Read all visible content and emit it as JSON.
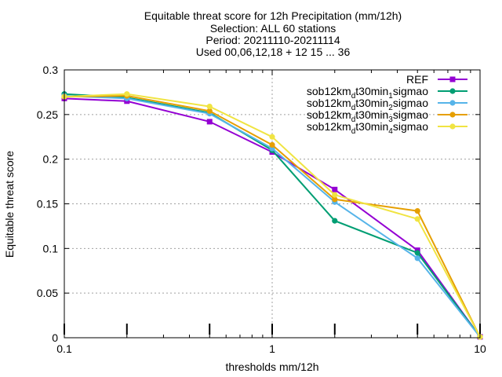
{
  "chart_data": {
    "type": "line",
    "title_lines": [
      "Equitable threat score  for 12h Precipitation (mm/12h)",
      "Selection: ALL     60 stations",
      "Period: 20211110-20211114",
      "Used 00,06,12,18 + 12 15 ... 36"
    ],
    "xlabel": "thresholds mm/12h",
    "ylabel": "Equitable threat score",
    "x_scale": "log",
    "xlim": [
      0.1,
      10
    ],
    "ylim": [
      0,
      0.3
    ],
    "x_ticks": [
      "0.1",
      "1",
      "10"
    ],
    "y_ticks": [
      "0",
      "0.05",
      "0.1",
      "0.15",
      "0.2",
      "0.25",
      "0.3"
    ],
    "grid": true,
    "legend_position": "top-right",
    "sample_ticks_x": [
      0.1,
      0.2,
      0.5,
      1,
      2,
      5,
      10
    ],
    "series": [
      {
        "name": "REF",
        "color": "#9400d3",
        "marker": "square",
        "x": [
          0.1,
          0.2,
          0.5,
          1,
          2,
          5,
          10
        ],
        "y": [
          0.268,
          0.265,
          0.242,
          0.208,
          0.166,
          0.098,
          0.001
        ]
      },
      {
        "name": "sob12km_dt30min_1sigmao",
        "label_parts": [
          "sob12km",
          "d",
          "t30min",
          "1",
          "sigmao"
        ],
        "color": "#009e73",
        "marker": "circle",
        "x": [
          0.1,
          0.2,
          0.5,
          1,
          2,
          5,
          10
        ],
        "y": [
          0.273,
          0.269,
          0.252,
          0.21,
          0.131,
          0.095,
          0.001
        ]
      },
      {
        "name": "sob12km_dt30min_2sigmao",
        "label_parts": [
          "sob12km",
          "d",
          "t30min",
          "2",
          "sigmao"
        ],
        "color": "#56b4e9",
        "marker": "circle",
        "x": [
          0.1,
          0.2,
          0.5,
          1,
          2,
          5,
          10
        ],
        "y": [
          0.271,
          0.268,
          0.251,
          0.212,
          0.152,
          0.089,
          0.001
        ]
      },
      {
        "name": "sob12km_dt30min_3sigmao",
        "label_parts": [
          "sob12km",
          "d",
          "t30min",
          "3",
          "sigmao"
        ],
        "color": "#e69f00",
        "marker": "circle",
        "x": [
          0.1,
          0.2,
          0.5,
          1,
          2,
          5,
          10
        ],
        "y": [
          0.27,
          0.271,
          0.254,
          0.216,
          0.155,
          0.142,
          0.001
        ]
      },
      {
        "name": "sob12km_dt30min_4sigmao",
        "label_parts": [
          "sob12km",
          "d",
          "t30min",
          "4",
          "sigmao"
        ],
        "color": "#f0e442",
        "marker": "circle",
        "x": [
          0.1,
          0.2,
          0.5,
          1,
          2,
          5,
          10
        ],
        "y": [
          0.27,
          0.273,
          0.259,
          0.225,
          0.16,
          0.133,
          0.001
        ]
      }
    ]
  }
}
